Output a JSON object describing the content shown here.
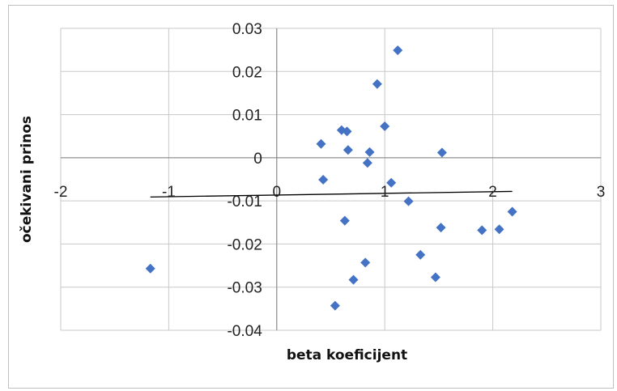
{
  "chart_data": {
    "type": "scatter",
    "title": "",
    "xlabel": "beta koeficijent",
    "ylabel": "očekivani prinos",
    "xlim": [
      -2,
      3
    ],
    "ylim": [
      -0.04,
      0.03
    ],
    "grid": true,
    "legend": "none",
    "marker": "diamond",
    "marker_color": "#4472C4",
    "x_ticks": [
      "-2",
      "-1",
      "0",
      "1",
      "2",
      "3"
    ],
    "y_ticks": [
      "0.03",
      "0.02",
      "0.01",
      "0",
      "-0.01",
      "-0.02",
      "-0.03",
      "-0.04"
    ],
    "points": [
      {
        "x": -1.17,
        "y": -0.0257
      },
      {
        "x": 0.41,
        "y": 0.0032
      },
      {
        "x": 0.43,
        "y": -0.0051
      },
      {
        "x": 0.54,
        "y": -0.0343
      },
      {
        "x": 0.6,
        "y": 0.0064
      },
      {
        "x": 0.65,
        "y": 0.0061
      },
      {
        "x": 0.66,
        "y": 0.0018
      },
      {
        "x": 0.63,
        "y": -0.0146
      },
      {
        "x": 0.71,
        "y": -0.0283
      },
      {
        "x": 0.82,
        "y": -0.0243
      },
      {
        "x": 0.84,
        "y": -0.0012
      },
      {
        "x": 0.86,
        "y": 0.0013
      },
      {
        "x": 0.93,
        "y": 0.0171
      },
      {
        "x": 1.0,
        "y": 0.0073
      },
      {
        "x": 1.06,
        "y": -0.0058
      },
      {
        "x": 1.12,
        "y": 0.0249
      },
      {
        "x": 1.22,
        "y": -0.0101
      },
      {
        "x": 1.33,
        "y": -0.0225
      },
      {
        "x": 1.47,
        "y": -0.0277
      },
      {
        "x": 1.52,
        "y": -0.0162
      },
      {
        "x": 1.53,
        "y": 0.0012
      },
      {
        "x": 1.9,
        "y": -0.0168
      },
      {
        "x": 2.06,
        "y": -0.0166
      },
      {
        "x": 2.18,
        "y": -0.0125
      }
    ],
    "trendline": {
      "type": "linear",
      "color": "#000000",
      "from": {
        "x": -1.17,
        "y": -0.0091
      },
      "to": {
        "x": 2.18,
        "y": -0.0078
      }
    }
  }
}
